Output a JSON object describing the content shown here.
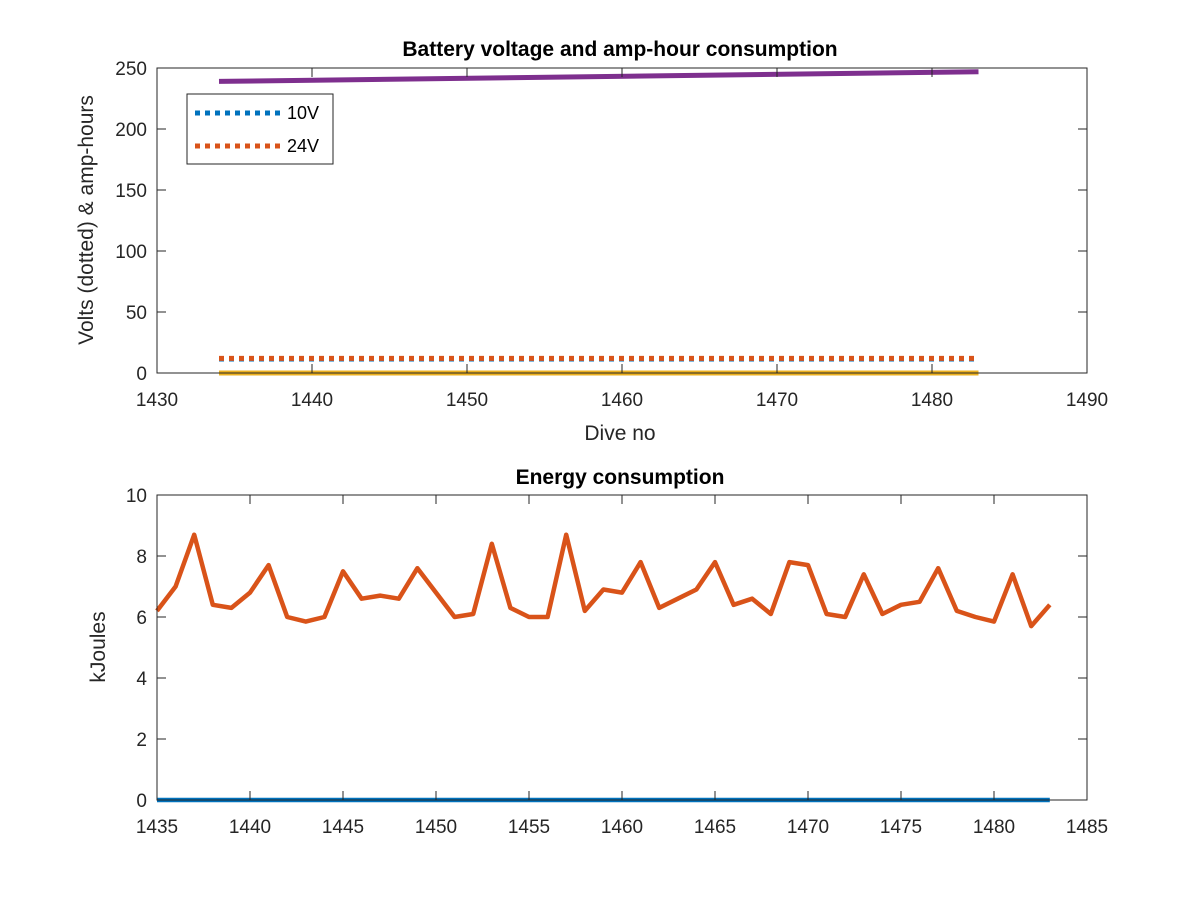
{
  "chart_data": [
    {
      "type": "line",
      "title": "Battery voltage and amp-hour consumption",
      "xlabel": "Dive no",
      "ylabel": "Volts (dotted) & amp-hours",
      "xlim": [
        1430,
        1490
      ],
      "ylim": [
        0,
        250
      ],
      "xticks": [
        1430,
        1440,
        1450,
        1460,
        1470,
        1480,
        1490
      ],
      "yticks": [
        0,
        50,
        100,
        150,
        200,
        250
      ],
      "grid": false,
      "legend_position": "top-left",
      "series": [
        {
          "name": "10V",
          "style": "dotted",
          "color": "#0072BD",
          "x": [
            1434,
            1483
          ],
          "y": [
            11.5,
            11.5
          ]
        },
        {
          "name": "24V",
          "style": "dotted",
          "color": "#D95319",
          "x": [
            1434,
            1483
          ],
          "y": [
            12,
            12
          ]
        },
        {
          "style": "solid",
          "color": "#EDB120",
          "x": [
            1434,
            1483
          ],
          "y": [
            0,
            0
          ]
        },
        {
          "style": "solid",
          "color": "#7E2F8E",
          "x": [
            1434,
            1483
          ],
          "y": [
            239,
            247
          ]
        }
      ]
    },
    {
      "type": "line",
      "title": "Energy consumption",
      "xlabel": "",
      "ylabel": "kJoules",
      "xlim": [
        1435,
        1485
      ],
      "ylim": [
        0,
        10
      ],
      "xticks": [
        1435,
        1440,
        1445,
        1450,
        1455,
        1460,
        1465,
        1470,
        1475,
        1480,
        1485
      ],
      "yticks": [
        0,
        2,
        4,
        6,
        8,
        10
      ],
      "grid": false,
      "series": [
        {
          "style": "solid",
          "color": "#0072BD",
          "x": [
            1435,
            1483
          ],
          "y": [
            0,
            0
          ]
        },
        {
          "style": "solid",
          "color": "#D95319",
          "x": [
            1435,
            1436,
            1437,
            1438,
            1439,
            1440,
            1441,
            1442,
            1443,
            1444,
            1445,
            1446,
            1447,
            1448,
            1449,
            1450,
            1451,
            1452,
            1453,
            1454,
            1455,
            1456,
            1457,
            1458,
            1459,
            1460,
            1461,
            1462,
            1463,
            1464,
            1465,
            1466,
            1467,
            1468,
            1469,
            1470,
            1471,
            1472,
            1473,
            1474,
            1475,
            1476,
            1477,
            1478,
            1479,
            1480,
            1481,
            1482,
            1483
          ],
          "y": [
            6.2,
            7.0,
            8.7,
            6.4,
            6.3,
            6.8,
            7.7,
            6.0,
            5.85,
            6.0,
            7.5,
            6.6,
            6.7,
            6.6,
            7.6,
            6.8,
            6.0,
            6.1,
            8.4,
            6.3,
            6.0,
            6.0,
            8.7,
            6.2,
            6.9,
            6.8,
            7.8,
            6.3,
            6.6,
            6.9,
            7.8,
            6.4,
            6.6,
            6.1,
            7.8,
            7.7,
            6.1,
            6.0,
            7.4,
            6.1,
            6.4,
            6.5,
            7.6,
            6.2,
            6.0,
            5.85,
            7.4,
            5.7,
            6.4
          ]
        }
      ]
    }
  ]
}
